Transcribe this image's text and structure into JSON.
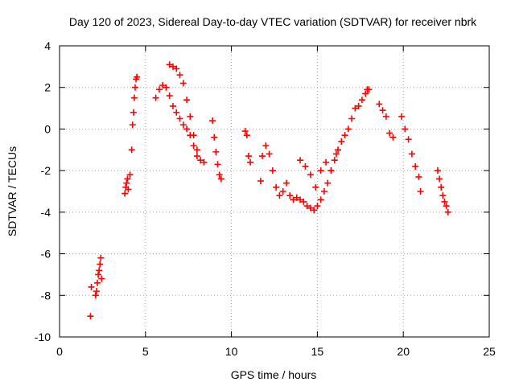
{
  "chart_data": {
    "type": "scatter",
    "title": "Day 120 of 2023, Sidereal Day-to-day VTEC variation (SDTVAR) for receiver nbrk",
    "xlabel": "GPS time / hours",
    "ylabel": "SDTVAR / TECUs",
    "xlim": [
      0,
      25
    ],
    "ylim": [
      -10,
      4
    ],
    "xticks": [
      "0",
      "5",
      "10",
      "15",
      "20",
      "25"
    ],
    "xtick_values": [
      0,
      5,
      10,
      15,
      20,
      25
    ],
    "yticks": [
      "4",
      "2",
      "0",
      "-2",
      "-4",
      "-6",
      "-8",
      "-10"
    ],
    "ytick_values": [
      4,
      2,
      0,
      -2,
      -4,
      -6,
      -8,
      -10
    ],
    "grid": true,
    "marker": "+",
    "series": [
      {
        "name": "SDTVAR",
        "color": "#ff0000",
        "x": [
          1.8,
          1.85,
          2.1,
          2.15,
          2.2,
          2.25,
          2.3,
          2.35,
          2.4,
          2.45,
          3.8,
          3.85,
          3.9,
          3.95,
          4.0,
          4.1,
          4.2,
          4.25,
          4.3,
          4.35,
          4.4,
          4.45,
          4.5,
          5.6,
          5.8,
          6.0,
          6.2,
          6.4,
          6.6,
          6.8,
          7.0,
          7.2,
          7.4,
          7.6,
          7.8,
          8.0,
          8.2,
          8.4,
          6.4,
          6.6,
          6.8,
          7.0,
          7.2,
          7.4,
          7.6,
          7.8,
          8.0,
          8.9,
          9.0,
          9.1,
          9.2,
          9.3,
          9.4,
          10.8,
          10.9,
          11.0,
          11.1,
          11.7,
          11.8,
          12.0,
          12.2,
          12.4,
          12.6,
          12.8,
          13.0,
          13.2,
          13.4,
          13.6,
          13.8,
          14.0,
          14.2,
          14.4,
          14.6,
          14.8,
          15.0,
          15.2,
          15.4,
          15.6,
          15.8,
          16.0,
          16.2,
          16.4,
          16.6,
          16.8,
          17.0,
          17.2,
          17.4,
          17.6,
          17.8,
          17.9,
          18.0,
          14.0,
          14.3,
          14.6,
          14.9,
          15.2,
          15.5,
          15.8,
          16.1,
          18.6,
          18.8,
          19.0,
          19.2,
          19.4,
          19.9,
          20.1,
          20.3,
          20.5,
          20.7,
          20.9,
          21.0,
          22.0,
          22.1,
          22.2,
          22.3,
          22.4,
          22.5,
          22.6
        ],
        "y": [
          -9.0,
          -7.6,
          -8.0,
          -7.8,
          -7.4,
          -7.0,
          -6.8,
          -6.5,
          -6.2,
          -7.2,
          -3.1,
          -2.8,
          -2.6,
          -2.4,
          -2.9,
          -2.2,
          -1.0,
          0.2,
          0.8,
          1.5,
          2.0,
          2.4,
          2.5,
          1.5,
          1.9,
          2.1,
          2.0,
          1.6,
          1.1,
          0.8,
          0.5,
          0.2,
          0.0,
          -0.3,
          -0.8,
          -1.3,
          -1.5,
          -1.6,
          3.1,
          3.0,
          2.9,
          2.6,
          2.2,
          1.4,
          0.6,
          -0.3,
          -1.0,
          0.4,
          -0.4,
          -1.1,
          -1.7,
          -2.2,
          -2.4,
          -0.1,
          -0.3,
          -1.3,
          -1.6,
          -2.5,
          -1.3,
          -0.8,
          -1.2,
          -2.0,
          -2.8,
          -3.2,
          -3.0,
          -2.6,
          -3.2,
          -3.4,
          -3.3,
          -3.4,
          -3.5,
          -3.7,
          -3.8,
          -3.9,
          -3.7,
          -3.4,
          -3.0,
          -2.6,
          -2.0,
          -1.5,
          -1.0,
          -0.6,
          -0.3,
          0.0,
          0.5,
          1.0,
          1.1,
          1.4,
          1.7,
          1.9,
          1.9,
          -1.5,
          -1.8,
          -2.2,
          -2.8,
          -2.0,
          -1.6,
          -2.0,
          -1.2,
          1.2,
          0.9,
          0.6,
          -0.2,
          -0.4,
          0.6,
          0.0,
          -0.5,
          -1.2,
          -1.8,
          -2.3,
          -3.0,
          -2.0,
          -2.4,
          -2.8,
          -3.2,
          -3.5,
          -3.7,
          -4.0
        ]
      }
    ]
  }
}
